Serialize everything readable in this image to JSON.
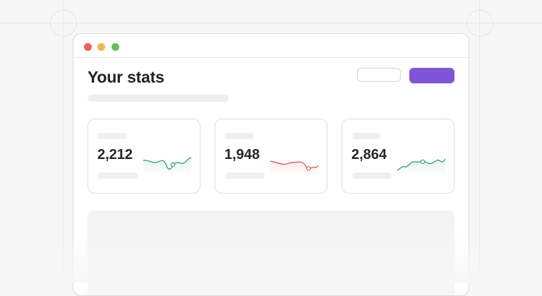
{
  "header": {
    "title": "Your stats"
  },
  "colors": {
    "primary_button": "#7e55d9",
    "positive": "#1f9d60",
    "negative": "#e24646",
    "window_dot_red": "#ec5f56",
    "window_dot_yellow": "#f0b94a",
    "window_dot_green": "#5fc454"
  },
  "stats": [
    {
      "value": "2,212",
      "trend": "positive",
      "icon": "sparkline-up"
    },
    {
      "value": "1,948",
      "trend": "negative",
      "icon": "sparkline-down"
    },
    {
      "value": "2,864",
      "trend": "positive",
      "icon": "sparkline-up"
    }
  ]
}
